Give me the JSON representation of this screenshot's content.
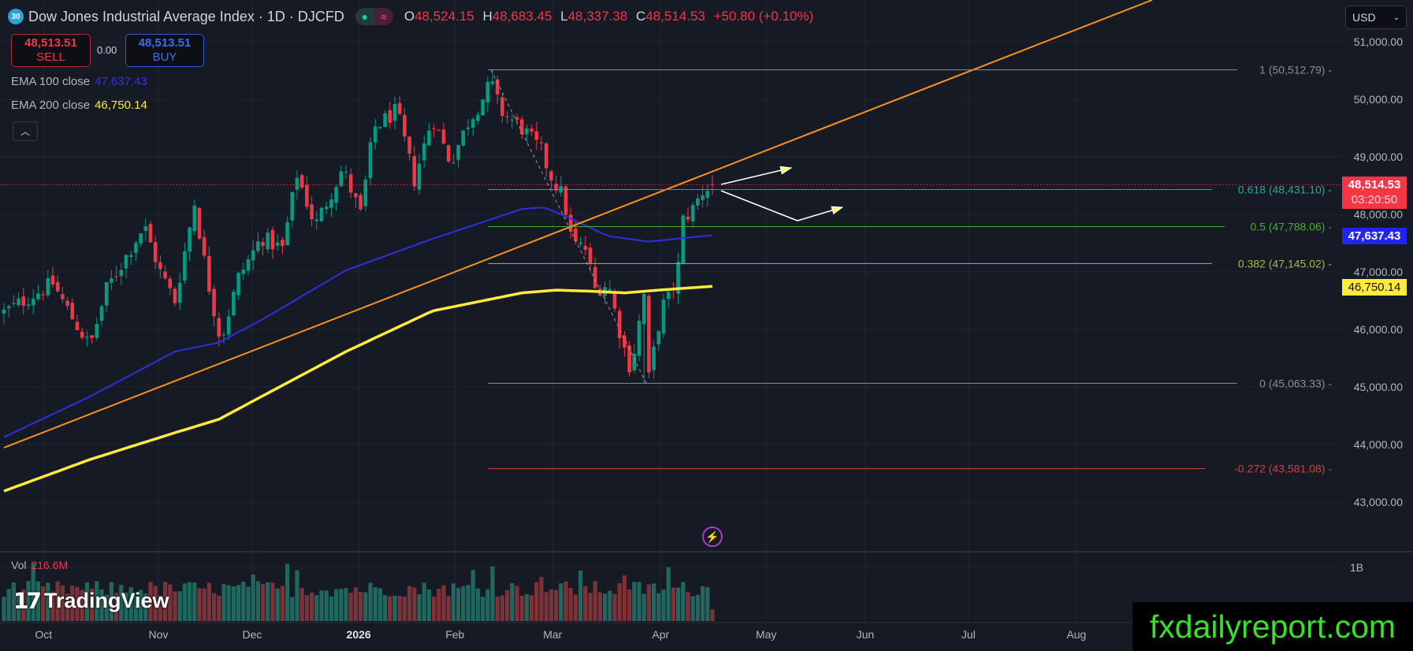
{
  "header": {
    "badge": "30",
    "title": "Dow Jones Industrial Average Index · 1D · DJCFD",
    "ohlc": {
      "o_label": "O",
      "o": "48,524.15",
      "h_label": "H",
      "h": "48,683.45",
      "l_label": "L",
      "l": "48,337.38",
      "c_label": "C",
      "c": "48,514.53",
      "change": "+50.80 (+0.10%)"
    }
  },
  "trade": {
    "sell_price": "48,513.51",
    "sell_label": "SELL",
    "spread": "0.00",
    "buy_price": "48,513.51",
    "buy_label": "BUY"
  },
  "indicators": [
    {
      "label": "EMA 100 close",
      "value": "47,637.43",
      "color": "#2f2fe0"
    },
    {
      "label": "EMA 200 close",
      "value": "46,750.14",
      "color": "#ffeb3b"
    }
  ],
  "collapse_icon": "chevron-up-icon",
  "currency": "USD",
  "price_axis": {
    "ticks": [
      "51,000.00",
      "50,000.00",
      "49,000.00",
      "48,000.00",
      "47,000.00",
      "46,000.00",
      "45,000.00",
      "44,000.00",
      "43,000.00"
    ],
    "tick_values": [
      51000,
      50000,
      49000,
      48000,
      47000,
      46000,
      45000,
      44000,
      43000
    ],
    "last_price": "48,514.53",
    "countdown": "03:20:50",
    "ema100_tag": "47,637.43",
    "ema200_tag": "46,750.14"
  },
  "volume": {
    "label": "Vol",
    "value": "216.6M",
    "axis_tick": "1B"
  },
  "time_axis": [
    "Oct",
    "Nov",
    "Dec",
    "2026",
    "Feb",
    "Mar",
    "Apr",
    "May",
    "Jun",
    "Jul",
    "Aug"
  ],
  "branding": {
    "logo": "TradingView",
    "watermark": "fxdailyreport.com"
  },
  "chart_data": {
    "type": "candlestick",
    "symbol": "DJCFD",
    "interval": "1D",
    "ylim": [
      42600,
      51700
    ],
    "last_candle": {
      "o": 48524.15,
      "h": 48683.45,
      "l": 48337.38,
      "c": 48514.53
    },
    "close_anchors": [
      [
        0,
        46300
      ],
      [
        10,
        46800
      ],
      [
        14,
        46200
      ],
      [
        17.6,
        45700
      ],
      [
        21,
        46700
      ],
      [
        28.7,
        47800
      ],
      [
        32,
        47000
      ],
      [
        35,
        46500
      ],
      [
        39,
        48200
      ],
      [
        41.6,
        46900
      ],
      [
        44.4,
        45800
      ],
      [
        48,
        46900
      ],
      [
        52.7,
        47600
      ],
      [
        57,
        47400
      ],
      [
        60,
        48700
      ],
      [
        63.7,
        47800
      ],
      [
        66.5,
        48300
      ],
      [
        69.3,
        48800
      ],
      [
        73,
        48000
      ],
      [
        75.7,
        49500
      ],
      [
        80.4,
        49800
      ],
      [
        84,
        48600
      ],
      [
        87.7,
        49700
      ],
      [
        91.4,
        48900
      ],
      [
        95,
        49600
      ],
      [
        97.9,
        50000
      ],
      [
        99.7,
        50300
      ],
      [
        101.6,
        49800
      ],
      [
        106,
        49500
      ],
      [
        110,
        49100
      ],
      [
        111.7,
        48700
      ],
      [
        114.5,
        48300
      ],
      [
        116.3,
        47500
      ],
      [
        119,
        47400
      ],
      [
        121,
        46700
      ],
      [
        123.7,
        46800
      ],
      [
        126.5,
        45800
      ],
      [
        128.3,
        45300
      ],
      [
        131,
        46600
      ],
      [
        132,
        45150
      ],
      [
        134.7,
        46400
      ],
      [
        136.6,
        46600
      ],
      [
        138,
        47100
      ],
      [
        139,
        47900
      ],
      [
        141,
        48100
      ],
      [
        143,
        48400
      ],
      [
        145,
        48514.53
      ]
    ],
    "ema100": [
      [
        0,
        44128
      ],
      [
        17.6,
        44833
      ],
      [
        35,
        45615
      ],
      [
        44,
        45773
      ],
      [
        52.7,
        46164
      ],
      [
        70,
        47027
      ],
      [
        87.7,
        47575
      ],
      [
        96,
        47808
      ],
      [
        106,
        48095
      ],
      [
        110.5,
        48123
      ],
      [
        115,
        47967
      ],
      [
        123.7,
        47622
      ],
      [
        132,
        47527
      ],
      [
        145,
        47637.43
      ]
    ],
    "ema200": [
      [
        0,
        43191
      ],
      [
        17.6,
        43739
      ],
      [
        35,
        44205
      ],
      [
        44,
        44438
      ],
      [
        52.7,
        44833
      ],
      [
        70,
        45615
      ],
      [
        87.7,
        46321
      ],
      [
        106,
        46635
      ],
      [
        113,
        46684
      ],
      [
        120,
        46665
      ],
      [
        127,
        46635
      ],
      [
        134,
        46684
      ],
      [
        145,
        46750.14
      ]
    ],
    "trendline": {
      "from": [
        0,
        43945
      ],
      "to": [
        235,
        51726
      ],
      "color": "#f7931a"
    },
    "fib_diagonal": {
      "from": [
        99.7,
        50512.79
      ],
      "to": [
        131.5,
        45063.33
      ]
    },
    "fib_levels": [
      {
        "ratio": "1",
        "price": 50512.79,
        "label": "1 (50,512.79)",
        "color": "#8a8d96"
      },
      {
        "ratio": "0.618",
        "price": 48431.1,
        "label": "0.618 (48,431.10)",
        "color": "#26a69a"
      },
      {
        "ratio": "0.5",
        "price": 47788.06,
        "label": "0.5 (47,788.06)",
        "color": "#43b02a"
      },
      {
        "ratio": "0.382",
        "price": 47145.02,
        "label": "0.382 (47,145.02)",
        "color": "#9fbf3a"
      },
      {
        "ratio": "0",
        "price": 45063.33,
        "label": "0 (45,063.33)",
        "color": "#8a8d96"
      },
      {
        "ratio": "-0.272",
        "price": 43581.08,
        "label": "-0.272 (43,581.08)",
        "color": "#e03a3a"
      }
    ],
    "colors": {
      "up": "#089981",
      "down": "#f23645",
      "vol_up": "#22675e",
      "vol_down": "#7e3238"
    }
  }
}
